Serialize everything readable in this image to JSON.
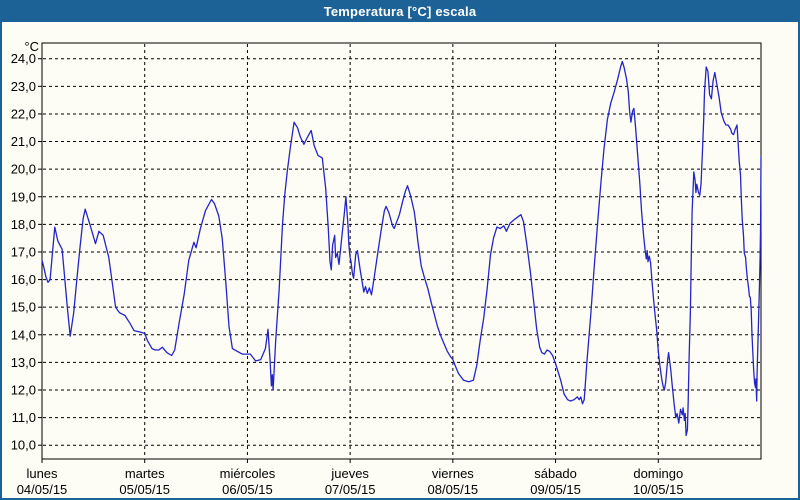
{
  "window": {
    "title": "Temperatura [°C] escala",
    "title_bar_color": "#1d6296",
    "frame_border_color": "#1d6296",
    "background_color": "#fdfdf5"
  },
  "chart_data": {
    "type": "line",
    "title": "Temperatura [°C] escala",
    "y_unit_label": "°C",
    "line_color": "#2424c8",
    "grid": "dashed",
    "grid_color": "#000000",
    "text_color": "#000000",
    "ylim": [
      9.5,
      24.57
    ],
    "xlim_hours": [
      0,
      168
    ],
    "y_ticks": [
      {
        "value": 24,
        "label": "24,0"
      },
      {
        "value": 23,
        "label": "23,0"
      },
      {
        "value": 22,
        "label": "22,0"
      },
      {
        "value": 21,
        "label": "21,0"
      },
      {
        "value": 20,
        "label": "20,0"
      },
      {
        "value": 19,
        "label": "19,0"
      },
      {
        "value": 18,
        "label": "18,0"
      },
      {
        "value": 17,
        "label": "17,0"
      },
      {
        "value": 16,
        "label": "16,0"
      },
      {
        "value": 15,
        "label": "15,0"
      },
      {
        "value": 14,
        "label": "14,0"
      },
      {
        "value": 13,
        "label": "13,0"
      },
      {
        "value": 12,
        "label": "12,0"
      },
      {
        "value": 11,
        "label": "11,0"
      },
      {
        "value": 10,
        "label": "10,0"
      }
    ],
    "x_days": [
      {
        "name": "lunes",
        "date": "04/05/15"
      },
      {
        "name": "martes",
        "date": "05/05/15"
      },
      {
        "name": "miércoles",
        "date": "06/05/15"
      },
      {
        "name": "jueves",
        "date": "07/05/15"
      },
      {
        "name": "viernes",
        "date": "08/05/15"
      },
      {
        "name": "sábado",
        "date": "09/05/15"
      },
      {
        "name": "domingo",
        "date": "10/05/15"
      }
    ],
    "series": [
      {
        "name": "Temperatura",
        "points": [
          [
            0,
            16.7
          ],
          [
            0.5,
            16.4
          ],
          [
            0.9,
            16.1
          ],
          [
            1.4,
            15.9
          ],
          [
            1.9,
            16.0
          ],
          [
            2.4,
            16.9
          ],
          [
            3.0,
            17.9
          ],
          [
            3.7,
            17.4
          ],
          [
            4.7,
            17.1
          ],
          [
            5.4,
            15.9
          ],
          [
            5.9,
            15.0
          ],
          [
            6.6,
            13.95
          ],
          [
            7.4,
            14.8
          ],
          [
            8.2,
            16.1
          ],
          [
            8.9,
            17.2
          ],
          [
            9.6,
            18.2
          ],
          [
            10.1,
            18.55
          ],
          [
            11.2,
            18.0
          ],
          [
            12.5,
            17.3
          ],
          [
            13.3,
            17.75
          ],
          [
            14.3,
            17.6
          ],
          [
            15.6,
            16.8
          ],
          [
            16.4,
            15.9
          ],
          [
            17.2,
            15.0
          ],
          [
            18.1,
            14.8
          ],
          [
            19.4,
            14.7
          ],
          [
            20.6,
            14.4
          ],
          [
            21.5,
            14.15
          ],
          [
            22.9,
            14.1
          ],
          [
            24.0,
            14.05
          ],
          [
            24.6,
            13.8
          ],
          [
            25.7,
            13.5
          ],
          [
            26.5,
            13.45
          ],
          [
            27.3,
            13.45
          ],
          [
            28.1,
            13.55
          ],
          [
            29.2,
            13.35
          ],
          [
            30.3,
            13.25
          ],
          [
            31.0,
            13.45
          ],
          [
            32.0,
            14.4
          ],
          [
            33.2,
            15.45
          ],
          [
            34.3,
            16.7
          ],
          [
            35.5,
            17.35
          ],
          [
            36.0,
            17.15
          ],
          [
            37.0,
            17.85
          ],
          [
            38.2,
            18.5
          ],
          [
            39.6,
            18.9
          ],
          [
            40.3,
            18.75
          ],
          [
            41.3,
            18.3
          ],
          [
            42.1,
            17.5
          ],
          [
            42.9,
            16.0
          ],
          [
            43.7,
            14.3
          ],
          [
            44.5,
            13.5
          ],
          [
            45.6,
            13.4
          ],
          [
            46.8,
            13.3
          ],
          [
            48.0,
            13.3
          ],
          [
            48.7,
            13.3
          ],
          [
            49.9,
            13.05
          ],
          [
            51.1,
            13.1
          ],
          [
            52.2,
            13.5
          ],
          [
            52.8,
            14.2
          ],
          [
            53.3,
            13.05
          ],
          [
            53.6,
            12.15
          ],
          [
            53.8,
            12.55
          ],
          [
            54.0,
            12.0
          ],
          [
            54.6,
            13.8
          ],
          [
            55.4,
            15.6
          ],
          [
            56.2,
            18.0
          ],
          [
            56.7,
            19.05
          ],
          [
            57.3,
            19.9
          ],
          [
            58.0,
            20.75
          ],
          [
            58.9,
            21.7
          ],
          [
            59.7,
            21.5
          ],
          [
            60.4,
            21.15
          ],
          [
            61.2,
            20.9
          ],
          [
            62.0,
            21.15
          ],
          [
            62.9,
            21.4
          ],
          [
            63.6,
            20.85
          ],
          [
            64.5,
            20.5
          ],
          [
            65.5,
            20.4
          ],
          [
            66.3,
            19.3
          ],
          [
            66.9,
            17.85
          ],
          [
            67.3,
            16.65
          ],
          [
            67.6,
            16.35
          ],
          [
            67.9,
            17.25
          ],
          [
            68.4,
            17.6
          ],
          [
            68.6,
            16.8
          ],
          [
            69.0,
            16.95
          ],
          [
            69.4,
            16.55
          ],
          [
            70.2,
            17.75
          ],
          [
            70.6,
            18.35
          ],
          [
            71.0,
            19.0
          ],
          [
            71.5,
            17.95
          ],
          [
            71.7,
            17.25
          ],
          [
            72.0,
            16.8
          ],
          [
            72.2,
            16.65
          ],
          [
            72.5,
            16.25
          ],
          [
            72.8,
            16.05
          ],
          [
            73.3,
            16.9
          ],
          [
            73.7,
            17.05
          ],
          [
            74.4,
            16.3
          ],
          [
            75.2,
            15.55
          ],
          [
            75.6,
            15.75
          ],
          [
            76.0,
            15.5
          ],
          [
            76.5,
            15.7
          ],
          [
            77.0,
            15.45
          ],
          [
            77.6,
            16.05
          ],
          [
            78.4,
            16.9
          ],
          [
            79.2,
            17.75
          ],
          [
            80.0,
            18.5
          ],
          [
            80.4,
            18.65
          ],
          [
            81.1,
            18.4
          ],
          [
            81.9,
            17.95
          ],
          [
            82.3,
            17.85
          ],
          [
            83.5,
            18.35
          ],
          [
            84.2,
            18.8
          ],
          [
            84.9,
            19.2
          ],
          [
            85.4,
            19.4
          ],
          [
            86.1,
            19.05
          ],
          [
            87.0,
            18.45
          ],
          [
            87.4,
            17.95
          ],
          [
            87.8,
            17.4
          ],
          [
            88.6,
            16.5
          ],
          [
            89.3,
            16.1
          ],
          [
            90.2,
            15.65
          ],
          [
            90.9,
            15.2
          ],
          [
            92.4,
            14.3
          ],
          [
            93.2,
            13.95
          ],
          [
            94.0,
            13.65
          ],
          [
            94.7,
            13.4
          ],
          [
            95.5,
            13.2
          ],
          [
            96.0,
            13.1
          ],
          [
            96.5,
            12.9
          ],
          [
            97.3,
            12.6
          ],
          [
            98.5,
            12.35
          ],
          [
            99.7,
            12.3
          ],
          [
            100.8,
            12.35
          ],
          [
            101.6,
            12.9
          ],
          [
            102.4,
            13.8
          ],
          [
            103.2,
            14.6
          ],
          [
            104.0,
            15.65
          ],
          [
            104.8,
            16.9
          ],
          [
            105.5,
            17.5
          ],
          [
            106.3,
            17.9
          ],
          [
            107.1,
            17.85
          ],
          [
            107.9,
            17.95
          ],
          [
            108.5,
            17.75
          ],
          [
            109.4,
            18.05
          ],
          [
            110.6,
            18.2
          ],
          [
            111.9,
            18.35
          ],
          [
            112.5,
            18.1
          ],
          [
            113.3,
            17.25
          ],
          [
            114.1,
            16.3
          ],
          [
            114.9,
            15.2
          ],
          [
            115.6,
            14.2
          ],
          [
            116.3,
            13.55
          ],
          [
            116.8,
            13.35
          ],
          [
            117.4,
            13.3
          ],
          [
            118.0,
            13.45
          ],
          [
            118.6,
            13.4
          ],
          [
            119.3,
            13.25
          ],
          [
            120.0,
            12.95
          ],
          [
            121.2,
            12.35
          ],
          [
            122.0,
            11.85
          ],
          [
            122.8,
            11.65
          ],
          [
            123.5,
            11.6
          ],
          [
            124.3,
            11.65
          ],
          [
            125.1,
            11.75
          ],
          [
            125.5,
            11.65
          ],
          [
            125.9,
            11.75
          ],
          [
            126.3,
            11.5
          ],
          [
            126.7,
            11.65
          ],
          [
            127.4,
            13.15
          ],
          [
            128.2,
            14.7
          ],
          [
            129.0,
            16.4
          ],
          [
            129.8,
            18.0
          ],
          [
            130.6,
            19.5
          ],
          [
            131.3,
            20.7
          ],
          [
            132.1,
            21.8
          ],
          [
            132.9,
            22.4
          ],
          [
            133.7,
            22.8
          ],
          [
            134.5,
            23.25
          ],
          [
            135.2,
            23.7
          ],
          [
            135.6,
            23.9
          ],
          [
            136.0,
            23.7
          ],
          [
            136.6,
            23.25
          ],
          [
            137.0,
            22.8
          ],
          [
            137.3,
            22.1
          ],
          [
            137.6,
            21.7
          ],
          [
            138.0,
            22.1
          ],
          [
            138.3,
            22.2
          ],
          [
            138.7,
            21.5
          ],
          [
            139.2,
            20.5
          ],
          [
            139.7,
            19.45
          ],
          [
            140.1,
            18.45
          ],
          [
            140.6,
            17.55
          ],
          [
            140.9,
            17.1
          ],
          [
            141.2,
            16.75
          ],
          [
            141.4,
            17.05
          ],
          [
            141.6,
            16.65
          ],
          [
            141.9,
            16.85
          ],
          [
            142.2,
            16.6
          ],
          [
            142.6,
            15.8
          ],
          [
            143.1,
            14.95
          ],
          [
            143.6,
            14.2
          ],
          [
            144.0,
            13.4
          ],
          [
            144.4,
            12.85
          ],
          [
            144.8,
            12.4
          ],
          [
            145.1,
            12.15
          ],
          [
            145.4,
            12.0
          ],
          [
            145.7,
            12.25
          ],
          [
            146.0,
            12.75
          ],
          [
            146.2,
            13.1
          ],
          [
            146.4,
            13.35
          ],
          [
            146.9,
            12.75
          ],
          [
            147.3,
            12.1
          ],
          [
            147.7,
            11.5
          ],
          [
            148.1,
            11.0
          ],
          [
            148.4,
            11.15
          ],
          [
            148.8,
            10.8
          ],
          [
            149.2,
            11.3
          ],
          [
            149.6,
            11.1
          ],
          [
            149.8,
            11.35
          ],
          [
            150.1,
            10.9
          ],
          [
            150.3,
            11.15
          ],
          [
            150.5,
            10.35
          ],
          [
            150.8,
            10.55
          ],
          [
            151.0,
            11.6
          ],
          [
            151.2,
            13.15
          ],
          [
            151.5,
            14.85
          ],
          [
            151.7,
            16.65
          ],
          [
            151.9,
            18.45
          ],
          [
            152.2,
            19.55
          ],
          [
            152.3,
            19.9
          ],
          [
            152.6,
            19.6
          ],
          [
            152.8,
            19.15
          ],
          [
            153.0,
            19.45
          ],
          [
            153.4,
            19.15
          ],
          [
            153.7,
            19.05
          ],
          [
            154.0,
            19.5
          ],
          [
            154.3,
            20.6
          ],
          [
            154.6,
            21.8
          ],
          [
            154.8,
            22.8
          ],
          [
            155.2,
            23.7
          ],
          [
            155.6,
            23.55
          ],
          [
            156.0,
            22.7
          ],
          [
            156.4,
            22.55
          ],
          [
            156.8,
            23.2
          ],
          [
            157.2,
            23.5
          ],
          [
            157.6,
            23.15
          ],
          [
            158.2,
            22.6
          ],
          [
            158.7,
            22.05
          ],
          [
            159.3,
            21.75
          ],
          [
            159.8,
            21.6
          ],
          [
            160.3,
            21.6
          ],
          [
            160.9,
            21.45
          ],
          [
            161.2,
            21.3
          ],
          [
            161.6,
            21.25
          ],
          [
            162.0,
            21.45
          ],
          [
            162.4,
            21.6
          ],
          [
            162.6,
            21.1
          ],
          [
            162.9,
            20.3
          ],
          [
            163.2,
            19.8
          ],
          [
            163.4,
            18.95
          ],
          [
            163.6,
            18.2
          ],
          [
            163.9,
            17.6
          ],
          [
            164.1,
            16.95
          ],
          [
            164.4,
            16.8
          ],
          [
            164.6,
            16.4
          ],
          [
            164.8,
            16.05
          ],
          [
            165.1,
            15.7
          ],
          [
            165.3,
            15.4
          ],
          [
            165.5,
            15.35
          ],
          [
            165.7,
            14.9
          ],
          [
            165.9,
            14.0
          ],
          [
            166.1,
            13.3
          ],
          [
            166.3,
            12.7
          ],
          [
            166.5,
            12.25
          ],
          [
            166.7,
            12.1
          ],
          [
            166.8,
            12.4
          ],
          [
            167.0,
            11.6
          ],
          [
            167.1,
            12.6
          ],
          [
            167.3,
            13.8
          ],
          [
            167.5,
            15.0
          ],
          [
            167.6,
            15.55
          ],
          [
            167.8,
            16.8
          ],
          [
            167.9,
            18.0
          ],
          [
            168.0,
            20.45
          ]
        ]
      }
    ]
  }
}
